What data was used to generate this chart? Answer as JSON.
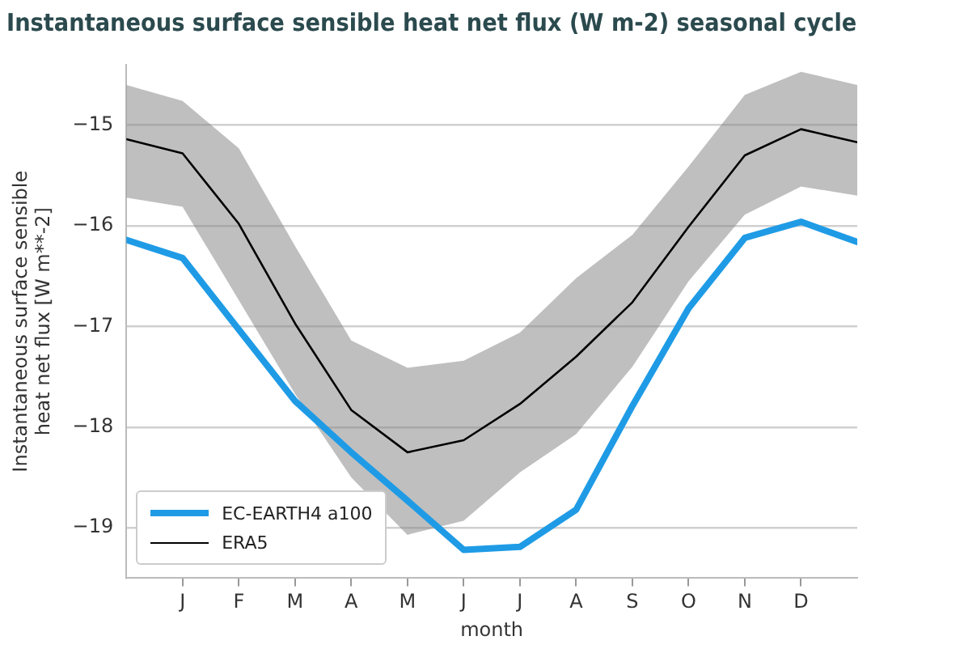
{
  "chart_data": {
    "type": "line",
    "title": "Instantaneous surface sensible heat net flux (W m-2) seasonal cycle",
    "xlabel": "month",
    "ylabel": "Instantaneous surface sensible\nheat net flux [W m**-2]",
    "categories": [
      null,
      "J",
      "F",
      "M",
      "A",
      "M",
      "J",
      "J",
      "A",
      "S",
      "O",
      "N",
      "D",
      null
    ],
    "ylim": [
      -19.5,
      -14.4
    ],
    "yticks": [
      {
        "value": -19,
        "label": "−19"
      },
      {
        "value": -18,
        "label": "−18"
      },
      {
        "value": -17,
        "label": "−17"
      },
      {
        "value": -16,
        "label": "−16"
      },
      {
        "value": -15,
        "label": "−15"
      }
    ],
    "series": [
      {
        "name": "EC-EARTH4 a100",
        "color": "#1f9be6",
        "values": [
          -16.14,
          -16.32,
          -17.03,
          -17.74,
          -18.25,
          -18.73,
          -19.22,
          -19.19,
          -18.82,
          -17.79,
          -16.82,
          -16.12,
          -15.96,
          -16.16
        ]
      },
      {
        "name": "ERA5",
        "color": "#000000",
        "values": [
          -15.14,
          -15.28,
          -15.98,
          -16.97,
          -17.83,
          -18.25,
          -18.13,
          -17.77,
          -17.3,
          -16.76,
          -16.01,
          -15.3,
          -15.04,
          -15.17
        ],
        "lower": [
          -15.72,
          -15.81,
          -16.74,
          -17.67,
          -18.5,
          -19.07,
          -18.93,
          -18.45,
          -18.07,
          -17.4,
          -16.55,
          -15.89,
          -15.61,
          -15.7
        ],
        "upper": [
          -14.6,
          -14.76,
          -15.23,
          -16.2,
          -17.14,
          -17.41,
          -17.34,
          -17.06,
          -16.52,
          -16.09,
          -15.41,
          -14.7,
          -14.47,
          -14.6
        ]
      }
    ],
    "grid": "y",
    "legend": "bottom left",
    "marker": "none",
    "line_style": "solid"
  }
}
